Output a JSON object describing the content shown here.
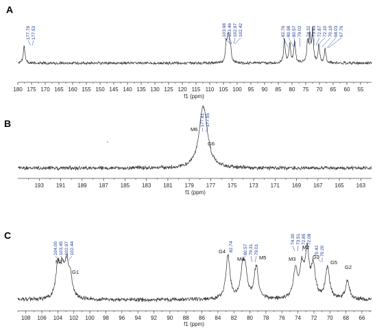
{
  "chart_data": [
    {
      "panel": "A",
      "type": "line",
      "xlabel": "f1 (ppm)",
      "xlim": [
        180,
        51
      ],
      "reversed_x": true,
      "x_ticks": [
        180,
        175,
        170,
        165,
        160,
        155,
        150,
        145,
        140,
        135,
        130,
        125,
        120,
        115,
        110,
        105,
        100,
        95,
        90,
        85,
        80,
        75,
        70,
        65,
        60,
        55
      ],
      "x_tick_labels": [
        "180",
        "175",
        "170",
        "165",
        "160",
        "155",
        "150",
        "145",
        "140",
        "135",
        "130",
        "125",
        "120",
        "115",
        "110",
        "105",
        "100",
        "95",
        "90",
        "85",
        "80",
        "75",
        "70",
        "65",
        "60",
        "55"
      ],
      "peak_labels": [
        "177.79",
        "177.53",
        "103.98",
        "103.46",
        "102.97",
        "102.42",
        "82.76",
        "80.98",
        "80.57",
        "79.02",
        "74.32",
        "73.49",
        "72.87",
        "72.10",
        "70.19",
        "68.03",
        "67.76"
      ],
      "peaks": [
        {
          "x": 177.7,
          "y": 0.52
        },
        {
          "x": 104.0,
          "y": 0.5
        },
        {
          "x": 103.4,
          "y": 0.58
        },
        {
          "x": 103.0,
          "y": 0.45
        },
        {
          "x": 102.4,
          "y": 0.4
        },
        {
          "x": 82.76,
          "y": 0.72
        },
        {
          "x": 80.8,
          "y": 0.6
        },
        {
          "x": 79.02,
          "y": 0.68
        },
        {
          "x": 74.32,
          "y": 0.62
        },
        {
          "x": 73.49,
          "y": 0.75
        },
        {
          "x": 72.5,
          "y": 0.98
        },
        {
          "x": 70.19,
          "y": 0.55
        },
        {
          "x": 67.9,
          "y": 0.42
        }
      ]
    },
    {
      "panel": "B",
      "type": "line",
      "xlabel": "f1 (ppm)",
      "xlim": [
        195,
        162
      ],
      "reversed_x": true,
      "x_ticks": [
        193,
        191,
        189,
        187,
        185,
        183,
        181,
        179,
        177,
        175,
        173,
        171,
        169,
        167,
        165,
        163
      ],
      "x_tick_labels": [
        "193",
        "191",
        "189",
        "187",
        "185",
        "183",
        "181",
        "179",
        "177",
        "175",
        "173",
        "171",
        "169",
        "167",
        "165",
        "163"
      ],
      "peak_labels": [
        "177.81",
        "177.55"
      ],
      "annotations": [
        "M6",
        "G6"
      ],
      "peaks": [
        {
          "x": 177.81,
          "y": 0.95
        },
        {
          "x": 177.55,
          "y": 0.75
        }
      ]
    },
    {
      "panel": "C",
      "type": "line",
      "xlabel": "f1 (ppm)",
      "xlim": [
        109,
        64.8
      ],
      "reversed_x": true,
      "x_ticks": [
        108,
        106,
        104,
        102,
        100,
        98,
        96,
        94,
        92,
        90,
        88,
        86,
        84,
        82,
        80,
        78,
        76,
        74,
        72,
        70,
        68,
        66
      ],
      "x_tick_labels": [
        "108",
        "106",
        "104",
        "102",
        "100",
        "98",
        "96",
        "94",
        "92",
        "90",
        "88",
        "86",
        "84",
        "82",
        "80",
        "78",
        "76",
        "74",
        "72",
        "70",
        "68",
        "66"
      ],
      "peak_labels": [
        "104.00",
        "103.45",
        "102.97",
        "102.44",
        "82.74",
        "80.57",
        "79.31",
        "79.01",
        "74.30",
        "73.51",
        "72.85",
        "72.08",
        "70.42",
        "70.20"
      ],
      "annotations": [
        "M1",
        "G1",
        "G4",
        "M4",
        "M5",
        "M3",
        "M2",
        "G3",
        "G5",
        "G2"
      ],
      "peaks": [
        {
          "x": 104.0,
          "y": 0.6
        },
        {
          "x": 103.45,
          "y": 0.5
        },
        {
          "x": 102.9,
          "y": 0.58
        },
        {
          "x": 102.44,
          "y": 0.35
        },
        {
          "x": 82.74,
          "y": 0.82
        },
        {
          "x": 80.9,
          "y": 0.52
        },
        {
          "x": 80.57,
          "y": 0.45
        },
        {
          "x": 79.2,
          "y": 0.62
        },
        {
          "x": 74.3,
          "y": 0.52
        },
        {
          "x": 73.51,
          "y": 0.55
        },
        {
          "x": 72.85,
          "y": 0.85
        },
        {
          "x": 72.08,
          "y": 0.6
        },
        {
          "x": 70.3,
          "y": 0.6
        },
        {
          "x": 67.8,
          "y": 0.35
        }
      ]
    }
  ]
}
